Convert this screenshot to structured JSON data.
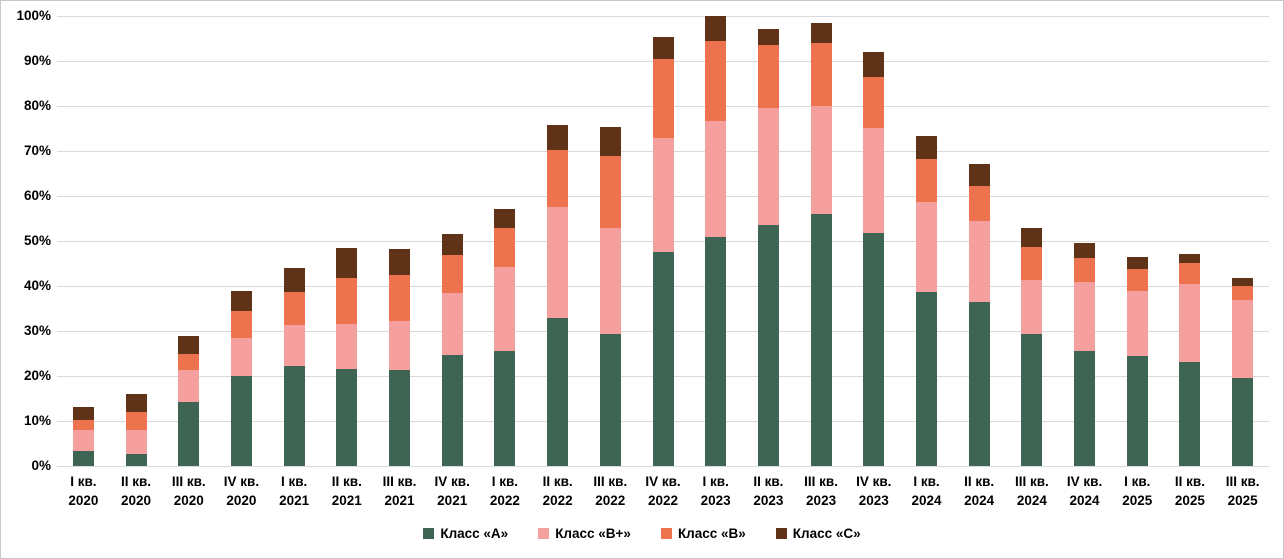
{
  "frame": {
    "background": "#FFFFFF",
    "border_color": "#C8C6C6",
    "gridline_color": "#D9D9D9",
    "axis_line_color": "#D9D9D9",
    "text_color": "#000000"
  },
  "chart_data": {
    "type": "bar",
    "stacked": true,
    "title": "",
    "xlabel": "",
    "ylabel": "",
    "ylim": [
      0,
      100
    ],
    "y_tick_step": 10,
    "y_ticks": [
      "0%",
      "10%",
      "20%",
      "30%",
      "40%",
      "50%",
      "60%",
      "70%",
      "80%",
      "90%",
      "100%"
    ],
    "grid": "horizontal",
    "legend_position": "bottom",
    "categories": [
      {
        "quarter": "I кв.",
        "year": "2020"
      },
      {
        "quarter": "II кв.",
        "year": "2020"
      },
      {
        "quarter": "III кв.",
        "year": "2020"
      },
      {
        "quarter": "IV кв.",
        "year": "2020"
      },
      {
        "quarter": "I кв.",
        "year": "2021"
      },
      {
        "quarter": "II кв.",
        "year": "2021"
      },
      {
        "quarter": "III кв.",
        "year": "2021"
      },
      {
        "quarter": "IV кв.",
        "year": "2021"
      },
      {
        "quarter": "I кв.",
        "year": "2022"
      },
      {
        "quarter": "II кв.",
        "year": "2022"
      },
      {
        "quarter": "III кв.",
        "year": "2022"
      },
      {
        "quarter": "IV кв.",
        "year": "2022"
      },
      {
        "quarter": "I кв.",
        "year": "2023"
      },
      {
        "quarter": "II кв.",
        "year": "2023"
      },
      {
        "quarter": "III кв.",
        "year": "2023"
      },
      {
        "quarter": "IV кв.",
        "year": "2023"
      },
      {
        "quarter": "I кв.",
        "year": "2024"
      },
      {
        "quarter": "II кв.",
        "year": "2024"
      },
      {
        "quarter": "III кв.",
        "year": "2024"
      },
      {
        "quarter": "IV кв.",
        "year": "2024"
      },
      {
        "quarter": "I кв.",
        "year": "2025"
      },
      {
        "quarter": "II кв.",
        "year": "2025"
      },
      {
        "quarter": "III кв.",
        "year": "2025"
      }
    ],
    "series": [
      {
        "name": "Класс «А»",
        "color": "#3E6554",
        "values": [
          3.4,
          2.7,
          14.3,
          20.0,
          22.2,
          21.5,
          21.3,
          24.6,
          25.6,
          33.0,
          29.4,
          47.6,
          50.8,
          53.5,
          55.9,
          51.8,
          38.7,
          36.4,
          29.3,
          25.6,
          24.4,
          23.2,
          19.6
        ]
      },
      {
        "name": "Класс «В+»",
        "color": "#F5A09E",
        "values": [
          4.7,
          5.2,
          7.1,
          8.4,
          9.2,
          10.1,
          10.9,
          13.8,
          18.6,
          24.6,
          23.6,
          25.2,
          25.8,
          26.0,
          24.0,
          23.4,
          20.0,
          18.0,
          12.0,
          15.4,
          14.6,
          17.3,
          17.4
        ]
      },
      {
        "name": "Класс «В»",
        "color": "#ED724E",
        "values": [
          2.1,
          4.1,
          3.4,
          6.0,
          7.3,
          10.1,
          10.3,
          8.5,
          8.8,
          12.6,
          16.0,
          17.6,
          17.8,
          14.1,
          14.0,
          11.3,
          9.5,
          7.8,
          7.3,
          5.2,
          4.8,
          4.6,
          3.0
        ]
      },
      {
        "name": "Класс «С»",
        "color": "#5E3317",
        "values": [
          3.0,
          3.9,
          4.0,
          4.6,
          5.3,
          6.7,
          5.7,
          4.6,
          4.2,
          5.6,
          6.3,
          4.9,
          5.6,
          3.5,
          4.5,
          5.4,
          5.1,
          4.9,
          4.4,
          3.4,
          2.7,
          2.1,
          1.8
        ]
      }
    ]
  }
}
